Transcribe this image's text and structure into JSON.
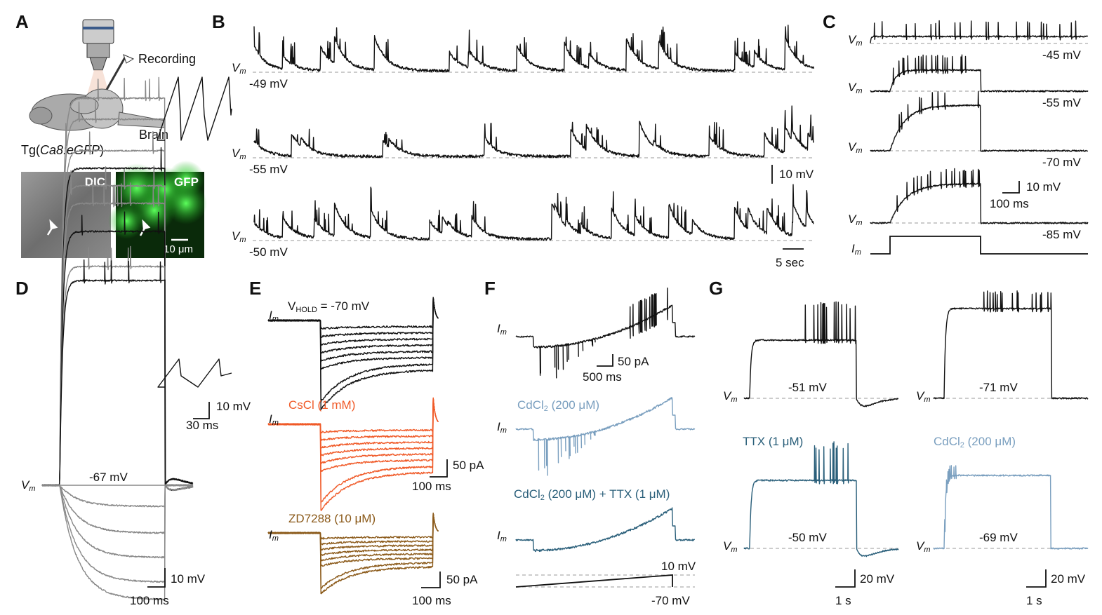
{
  "panels": {
    "A": {
      "label": "A",
      "recording": "Recording",
      "brain": "Brain",
      "genotype": {
        "text": "Tg(",
        "em": "Ca8:eGFP",
        "rest": ")"
      },
      "dic": "DIC",
      "gfp": "GFP",
      "scale": "10 μm"
    },
    "B": {
      "label": "B",
      "traces": [
        {
          "vm": {
            "text": "V",
            "sub": "m"
          },
          "level": "-49 mV"
        },
        {
          "vm": {
            "text": "V",
            "sub": "m"
          },
          "level": "-55 mV"
        },
        {
          "vm": {
            "text": "V",
            "sub": "m"
          },
          "level": "-50 mV"
        }
      ],
      "scale_v": "10 mV",
      "scale_t": "5 sec"
    },
    "C": {
      "label": "C",
      "traces": [
        {
          "vm": {
            "text": "V",
            "sub": "m"
          },
          "level": "-45 mV"
        },
        {
          "vm": {
            "text": "V",
            "sub": "m"
          },
          "level": "-55 mV"
        },
        {
          "vm": {
            "text": "V",
            "sub": "m"
          },
          "level": "-70 mV"
        },
        {
          "vm": {
            "text": "V",
            "sub": "m"
          },
          "level": "-85 mV"
        }
      ],
      "im": {
        "text": "I",
        "sub": "m"
      },
      "scale_v": "10 mV",
      "scale_t": "100 ms"
    },
    "D": {
      "label": "D",
      "vm": {
        "text": "V",
        "sub": "m"
      },
      "level": "-67 mV",
      "scale_v": "10 mV",
      "scale_t": "100 ms",
      "inset_v": "10 mV",
      "inset_t": "30 ms"
    },
    "E": {
      "label": "E",
      "hold": {
        "text": "V",
        "sub": "HOLD",
        "rest": " = -70 mV"
      },
      "conditions": [
        {
          "im": {
            "text": "I",
            "sub": "m"
          }
        },
        {
          "im": {
            "text": "I",
            "sub": "m"
          },
          "name": "CsCl (1 mM)"
        },
        {
          "im": {
            "text": "I",
            "sub": "m"
          },
          "name": "ZD7288 (10 μM)"
        }
      ],
      "scale1_i": "50 pA",
      "scale1_t": "100 ms",
      "scale2_i": "50 pA",
      "scale2_t": "100 ms"
    },
    "F": {
      "label": "F",
      "conditions": [
        {
          "im": {
            "text": "I",
            "sub": "m"
          }
        },
        {
          "im": {
            "text": "I",
            "sub": "m"
          },
          "name": {
            "text": "CdCl",
            "sub": "2",
            "rest": " (200 μM)"
          }
        },
        {
          "im": {
            "text": "I",
            "sub": "m"
          },
          "name": {
            "text": "CdCl",
            "sub": "2",
            "rest": " (200 μM) + TTX (1 μM)"
          }
        }
      ],
      "scale_i": "50 pA",
      "scale_t": "500 ms",
      "ramp_top": "10 mV",
      "ramp_bottom": "-70 mV"
    },
    "G": {
      "label": "G",
      "traces": [
        {
          "vm": {
            "text": "V",
            "sub": "m"
          },
          "level": "-51 mV"
        },
        {
          "vm": {
            "text": "V",
            "sub": "m"
          },
          "level": "-71 mV"
        },
        {
          "vm": {
            "text": "V",
            "sub": "m"
          },
          "level": "-50 mV",
          "name": "TTX (1 μM)"
        },
        {
          "vm": {
            "text": "V",
            "sub": "m"
          },
          "level": "-69 mV",
          "name": {
            "text": "CdCl",
            "sub": "2",
            "rest": " (200 μM)"
          }
        }
      ],
      "scale1_v": "20 mV",
      "scale1_t": "1 s",
      "scale2_v": "20 mV",
      "scale2_t": "1 s"
    }
  }
}
